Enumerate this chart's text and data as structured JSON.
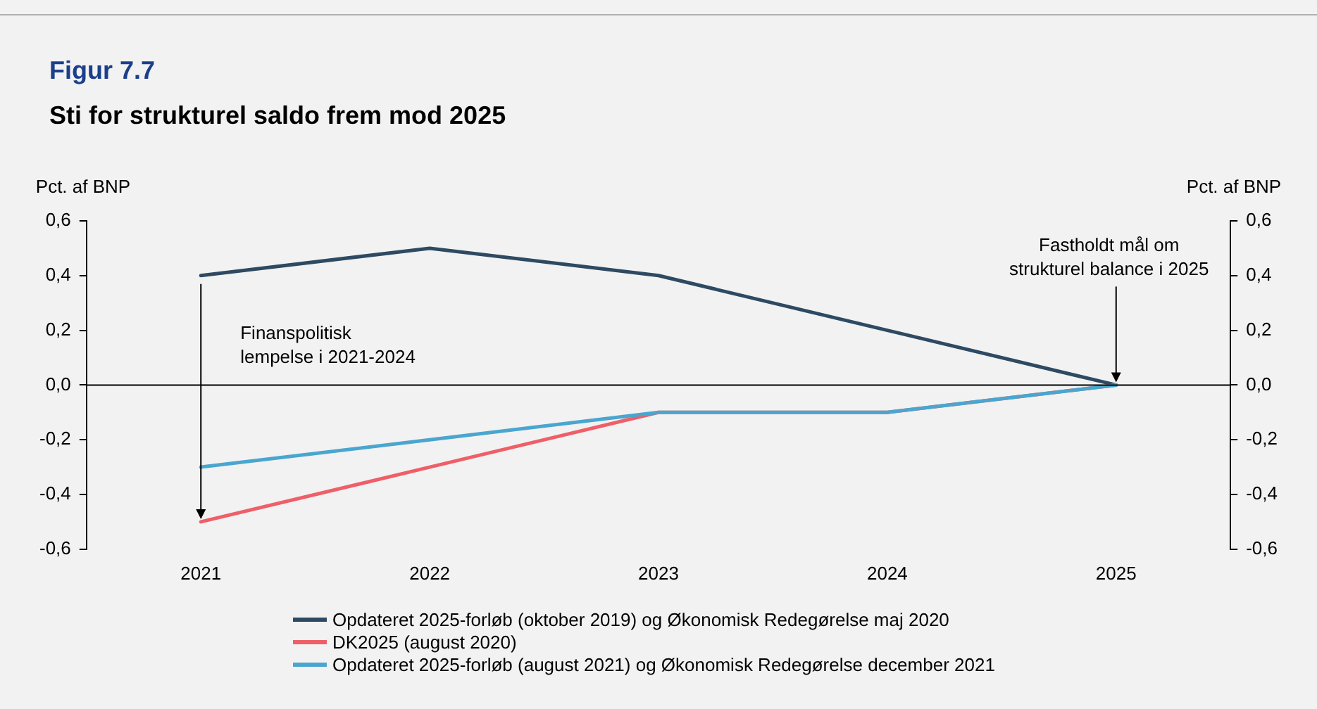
{
  "chart_data": {
    "type": "line",
    "title": "Figur 7.7",
    "subtitle": "Sti for strukturel saldo frem mod 2025",
    "ylabel": "Pct. af BNP",
    "y2label": "Pct. af BNP",
    "categories": [
      "2021",
      "2022",
      "2023",
      "2024",
      "2025"
    ],
    "series": [
      {
        "name": "Opdateret 2025-forløb (oktober 2019) og Økonomisk Redegørelse maj 2020",
        "color": "#2e4a62",
        "values": [
          0.4,
          0.5,
          0.4,
          0.2,
          0.0
        ]
      },
      {
        "name": "DK2025 (august 2020)",
        "color": "#ef5f68",
        "values": [
          -0.5,
          -0.3,
          -0.1,
          -0.1,
          0.0
        ]
      },
      {
        "name": "Opdateret 2025-forløb (august 2021) og Økonomisk Redegørelse december 2021",
        "color": "#4aa6cf",
        "values": [
          -0.3,
          -0.2,
          -0.1,
          -0.1,
          0.0
        ]
      }
    ],
    "ylim": [
      -0.6,
      0.6
    ],
    "yticks": [
      {
        "value": -0.6,
        "label": "-0,6"
      },
      {
        "value": -0.4,
        "label": "-0,4"
      },
      {
        "value": -0.2,
        "label": "-0,2"
      },
      {
        "value": 0,
        "label": "0,0"
      },
      {
        "value": 0.2,
        "label": "0,2"
      },
      {
        "value": 0.4,
        "label": "0,4"
      },
      {
        "value": 0.6,
        "label": "0,6"
      }
    ],
    "y2lim": [
      -0.6,
      0.6
    ],
    "y2ticks": [
      {
        "value": -0.6,
        "label": "-0,6"
      },
      {
        "value": -0.4,
        "label": "-0,4"
      },
      {
        "value": -0.2,
        "label": "-0,2"
      },
      {
        "value": 0,
        "label": "0,0"
      },
      {
        "value": 0.2,
        "label": "0,2"
      },
      {
        "value": 0.4,
        "label": "0,4"
      },
      {
        "value": 0.6,
        "label": "0,6"
      }
    ],
    "ref_lines": [
      {
        "axis": "y",
        "value": 0,
        "color": "#000000"
      }
    ],
    "annotations": [
      "Finanspolitisk\nlempelse i 2021-2024",
      {
        "text": "Fastholdt mål om\nstrukturel balance i 2025",
        "x": "2025",
        "y": 0
      }
    ],
    "grid": false,
    "legend": "bottom",
    "marker": "none",
    "line_style": "solid"
  }
}
